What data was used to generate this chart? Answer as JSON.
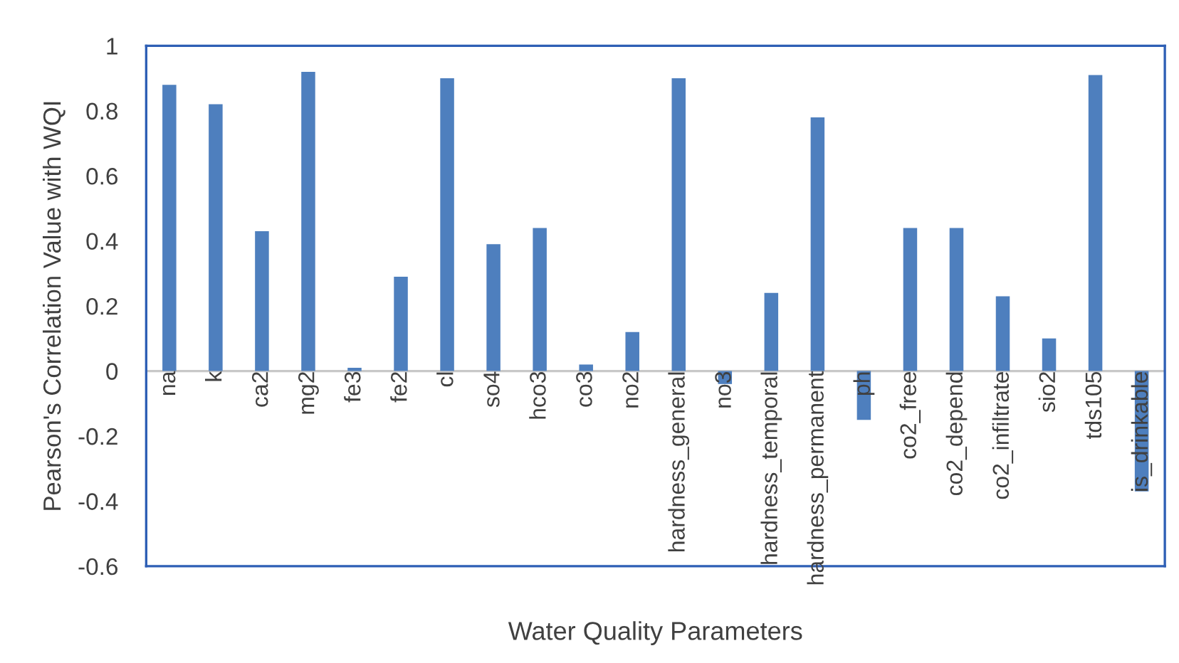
{
  "chart_data": {
    "type": "bar",
    "xlabel": "Water Quality Parameters",
    "ylabel": "Pearson's Correlation Value with WQI",
    "categories": [
      "na",
      "k",
      "ca2",
      "mg2",
      "fe3",
      "fe2",
      "cl",
      "so4",
      "hco3",
      "co3",
      "no2",
      "hardness_general",
      "no3",
      "hardness_temporal",
      "hardness_permanent",
      "ph",
      "co2_free",
      "co2_depend",
      "co2_infiltrate",
      "sio2",
      "tds105",
      "is_drinkable"
    ],
    "values": [
      0.88,
      0.82,
      0.43,
      0.92,
      0.01,
      0.29,
      0.9,
      0.39,
      0.44,
      0.02,
      0.12,
      0.9,
      -0.04,
      0.24,
      0.78,
      -0.15,
      0.44,
      0.44,
      0.23,
      0.1,
      0.91,
      -0.37
    ],
    "color": "#4e7fbe",
    "ylim": [
      -0.6,
      1
    ],
    "yticks": [
      -0.6,
      -0.4,
      -0.2,
      0,
      0.2,
      0.4,
      0.6,
      0.8,
      1
    ],
    "grid": false
  }
}
